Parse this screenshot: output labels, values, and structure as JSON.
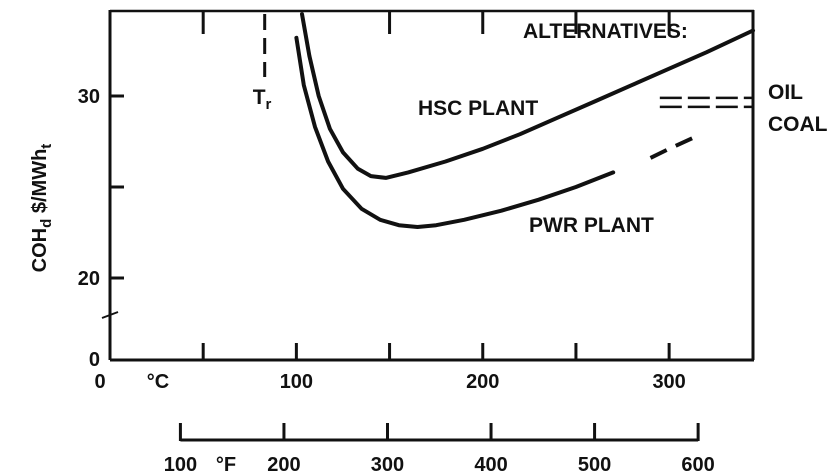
{
  "chart_data": {
    "type": "line",
    "title": "",
    "ylabel_main": "COH",
    "ylabel_sub": "d",
    "ylabel_unit": "$/MWh",
    "ylabel_unit_sub": "t",
    "x_unit_c": "°C",
    "x_unit_f": "°F",
    "x_ticks_c": [
      "0",
      "100",
      "200",
      "300"
    ],
    "x_ticks_f": [
      "100",
      "200",
      "300",
      "400",
      "500",
      "600"
    ],
    "y_ticks": [
      "0",
      "20",
      "30"
    ],
    "xlim_c": [
      0,
      345
    ],
    "ylim_display": [
      18,
      34
    ],
    "tr_label": "T",
    "tr_sub": "r",
    "tr_value_c": 83,
    "alternatives_label": "ALTERNATIVES:",
    "series": [
      {
        "name": "HSC PLANT",
        "color": "#111111",
        "x": [
          103,
          107,
          112,
          118,
          125,
          133,
          140,
          148,
          160,
          180,
          200,
          220,
          240,
          260,
          280,
          300,
          320,
          345
        ],
        "y": [
          34.5,
          32.2,
          30.0,
          28.2,
          26.9,
          26.0,
          25.6,
          25.5,
          25.8,
          26.4,
          27.1,
          27.9,
          28.8,
          29.7,
          30.6,
          31.5,
          32.4,
          33.6
        ]
      },
      {
        "name": "PWR PLANT",
        "color": "#111111",
        "x": [
          100,
          104,
          110,
          117,
          125,
          135,
          145,
          155,
          165,
          175,
          190,
          210,
          230,
          250,
          270,
          290,
          300,
          315
        ],
        "y": [
          33.2,
          30.6,
          28.3,
          26.4,
          24.9,
          23.8,
          23.2,
          22.9,
          22.8,
          22.9,
          23.2,
          23.7,
          24.3,
          25.0,
          25.8,
          26.6,
          27.1,
          27.8
        ],
        "dashed_from": 280
      }
    ],
    "alternatives": [
      {
        "name": "OIL",
        "value": 29.9,
        "x_range": [
          295,
          345
        ]
      },
      {
        "name": "COAL",
        "value": 29.4,
        "x_range": [
          295,
          345
        ]
      }
    ],
    "grid": false,
    "legend": "none"
  }
}
